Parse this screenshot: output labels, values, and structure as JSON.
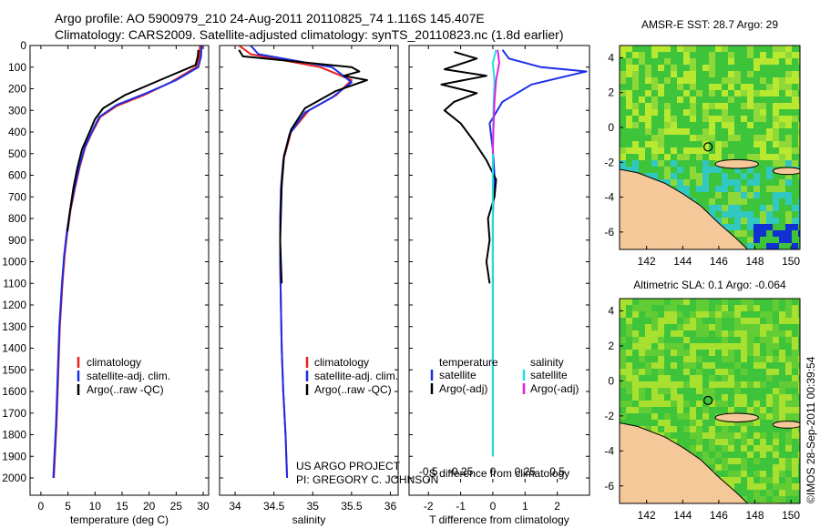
{
  "header": {
    "line1": "Argo profile: AO 5900979_210 24-Aug-2011 20110825_74 1.116S 145.407E",
    "line2": "Climatology: CARS2009. Satellite-adjusted climatology: synTS_20110823.nc (1.8d earlier)"
  },
  "credit": {
    "project": "US ARGO PROJECT",
    "pi": "PI: GREGORY C. JOHNSON",
    "imos": "©IMOS 28-Sep-2011 00:39:54"
  },
  "colors": {
    "climatology": "#e8201c",
    "satellite": "#1a2ee8",
    "argo": "#000000",
    "sal_satellite": "#22e0e0",
    "sal_argo": "#e020e0",
    "land": "#f5c89a",
    "sea_green": "#3ec43a",
    "sea_yellow": "#b8e830",
    "sea_cyan": "#30c8c0",
    "sea_blue": "#1030d0"
  },
  "chart_data": [
    {
      "type": "line",
      "xlabel": "temperature (deg C)",
      "xticks": [
        0,
        5,
        10,
        15,
        20,
        25,
        30
      ],
      "xlim": [
        -2,
        31
      ],
      "yticks": [
        0,
        100,
        200,
        300,
        400,
        500,
        600,
        700,
        800,
        900,
        1000,
        1100,
        1200,
        1300,
        1400,
        1500,
        1600,
        1700,
        1800,
        1900,
        2000
      ],
      "ylim": [
        2080,
        0
      ],
      "y_reversed": true,
      "legend": [
        "climatology",
        "satellite-adj. clim.",
        "Argo(..raw -QC)"
      ],
      "series": [
        {
          "name": "climatology",
          "color": "climatology",
          "x": [
            29.4,
            29.3,
            28.7,
            24,
            19,
            14,
            11,
            9.5,
            8.2,
            7.2,
            6.3,
            5.5,
            4.9,
            4.4,
            4,
            3.5,
            3.3,
            3.1,
            2.9,
            2.7,
            2.5,
            2.4
          ],
          "y": [
            0,
            50,
            100,
            170,
            230,
            280,
            330,
            400,
            470,
            560,
            660,
            760,
            860,
            970,
            1100,
            1300,
            1450,
            1600,
            1750,
            1850,
            1950,
            2000
          ]
        },
        {
          "name": "satellite-adj. clim.",
          "color": "satellite",
          "x": [
            29.7,
            29.6,
            29.1,
            25,
            19.5,
            14,
            10.8,
            9.4,
            8.1,
            7.1,
            6.2,
            5.4,
            4.8,
            4.3,
            3.9,
            3.4,
            3.2,
            3,
            2.8,
            2.6,
            2.4,
            2.3
          ],
          "y": [
            0,
            50,
            100,
            160,
            220,
            275,
            330,
            400,
            470,
            560,
            660,
            760,
            860,
            970,
            1100,
            1300,
            1450,
            1600,
            1750,
            1850,
            1950,
            2000
          ]
        },
        {
          "name": "Argo(..raw -QC)",
          "color": "argo",
          "x": [
            29.1,
            29,
            28.6,
            22,
            15.5,
            11.5,
            10,
            9,
            7.6,
            6.7,
            6,
            5.4,
            4.9
          ],
          "y": [
            20,
            50,
            90,
            160,
            230,
            290,
            340,
            400,
            480,
            570,
            660,
            760,
            860
          ]
        }
      ]
    },
    {
      "type": "line",
      "xlabel": "salinity",
      "xticks": [
        34,
        34.5,
        35,
        35.5,
        36
      ],
      "xlim": [
        33.8,
        36.1
      ],
      "ylim": [
        2080,
        0
      ],
      "y_reversed": true,
      "legend": [
        "climatology",
        "satellite-adj. clim.",
        "Argo(..raw -QC)"
      ],
      "series": [
        {
          "name": "climatology",
          "color": "climatology",
          "x": [
            34.05,
            34.2,
            35.1,
            35.5,
            35.3,
            34.95,
            34.72,
            34.63,
            34.6,
            34.58,
            34.58,
            34.59,
            34.6,
            34.62,
            34.65,
            34.67
          ],
          "y": [
            0,
            40,
            100,
            160,
            230,
            300,
            400,
            520,
            650,
            800,
            1000,
            1200,
            1400,
            1600,
            1800,
            2000
          ]
        },
        {
          "name": "satellite-adj. clim.",
          "color": "satellite",
          "x": [
            34.2,
            34.3,
            35.25,
            35.5,
            35.25,
            34.9,
            34.7,
            34.62,
            34.59,
            34.58,
            34.58,
            34.59,
            34.6,
            34.62,
            34.65,
            34.67
          ],
          "y": [
            0,
            40,
            100,
            170,
            240,
            310,
            410,
            530,
            660,
            800,
            1000,
            1200,
            1400,
            1600,
            1800,
            2000
          ]
        },
        {
          "name": "Argo(..raw -QC)",
          "color": "argo",
          "x": [
            34.05,
            34.1,
            35.5,
            35.6,
            35.4,
            35.7,
            35.3,
            34.9,
            34.72,
            34.63,
            34.6,
            34.59,
            34.58,
            34.59,
            34.6
          ],
          "y": [
            20,
            50,
            100,
            120,
            140,
            160,
            210,
            290,
            390,
            510,
            640,
            780,
            900,
            1000,
            1100
          ]
        }
      ]
    },
    {
      "type": "line",
      "xlabel": "T difference from climatology",
      "top_xlabel": "S difference from climatology",
      "xticks": [
        -2,
        -1,
        0,
        1,
        2
      ],
      "top_xtick_labels": [
        "-0.5",
        "-0.25",
        "0",
        "0.25",
        "0.5"
      ],
      "top_xtick_values": [
        -0.5,
        -0.25,
        0,
        0.25,
        0.5
      ],
      "xlim": [
        -2.6,
        3
      ],
      "ylim": [
        2080,
        0
      ],
      "y_reversed": true,
      "legend_titles": [
        "temperature",
        "salinity"
      ],
      "legend": [
        "satellite",
        "Argo(-adj)",
        "satellite",
        "Argo(-adj)"
      ],
      "series": [
        {
          "name": "satellite",
          "group": "temperature",
          "color": "satellite",
          "x": [
            0.3,
            0.5,
            1.5,
            2.9,
            1.2,
            0.3,
            -0.1,
            0,
            0.05,
            0.02,
            0,
            0,
            0,
            0,
            0,
            0,
            0,
            0
          ],
          "y": [
            20,
            60,
            100,
            120,
            180,
            260,
            360,
            480,
            600,
            700,
            800,
            900,
            1000,
            1200,
            1400,
            1600,
            1800,
            1900
          ]
        },
        {
          "name": "Argo(-adj)",
          "group": "temperature",
          "color": "argo",
          "x": [
            -1.2,
            -0.5,
            -1.5,
            -0.2,
            -1.6,
            -0.5,
            -1.2,
            -1.5,
            -1,
            -0.6,
            -0.2,
            0.1,
            0.05,
            -0.15,
            -0.1,
            -0.2,
            -0.1
          ],
          "y": [
            30,
            60,
            110,
            140,
            180,
            220,
            260,
            300,
            360,
            440,
            530,
            620,
            700,
            800,
            900,
            1000,
            1100
          ]
        },
        {
          "name": "satellite",
          "group": "salinity",
          "color": "sal_satellite",
          "x": [
            0.1,
            0,
            0.05,
            0.02,
            0,
            0,
            0,
            0,
            0,
            0,
            0,
            0
          ],
          "y": [
            20,
            80,
            160,
            300,
            500,
            700,
            900,
            1100,
            1300,
            1500,
            1700,
            1900
          ]
        },
        {
          "name": "Argo(-adj)",
          "group": "salinity",
          "color": "sal_argo",
          "x": [
            0.15,
            0.2,
            0.1,
            0.05,
            0.02,
            0
          ],
          "y": [
            20,
            80,
            160,
            260,
            380,
            500
          ]
        }
      ]
    },
    {
      "type": "heatmap",
      "title": "AMSR-E SST: 28.7 Argo: 29",
      "xticks": [
        142,
        144,
        146,
        148,
        150
      ],
      "yticks": [
        4,
        2,
        0,
        -2,
        -4,
        -6
      ],
      "xlim": [
        140.5,
        150.5
      ],
      "ylim": [
        -7,
        4.7
      ],
      "argo_marker": [
        145.407,
        -1.116
      ]
    },
    {
      "type": "heatmap",
      "title": "Altimetric SLA: 0.1 Argo: -0.064",
      "xticks": [
        142,
        144,
        146,
        148,
        150
      ],
      "yticks": [
        4,
        2,
        0,
        -2,
        -4,
        -6
      ],
      "xlim": [
        140.5,
        150.5
      ],
      "ylim": [
        -7,
        4.7
      ],
      "argo_marker": [
        145.407,
        -1.116
      ]
    }
  ]
}
